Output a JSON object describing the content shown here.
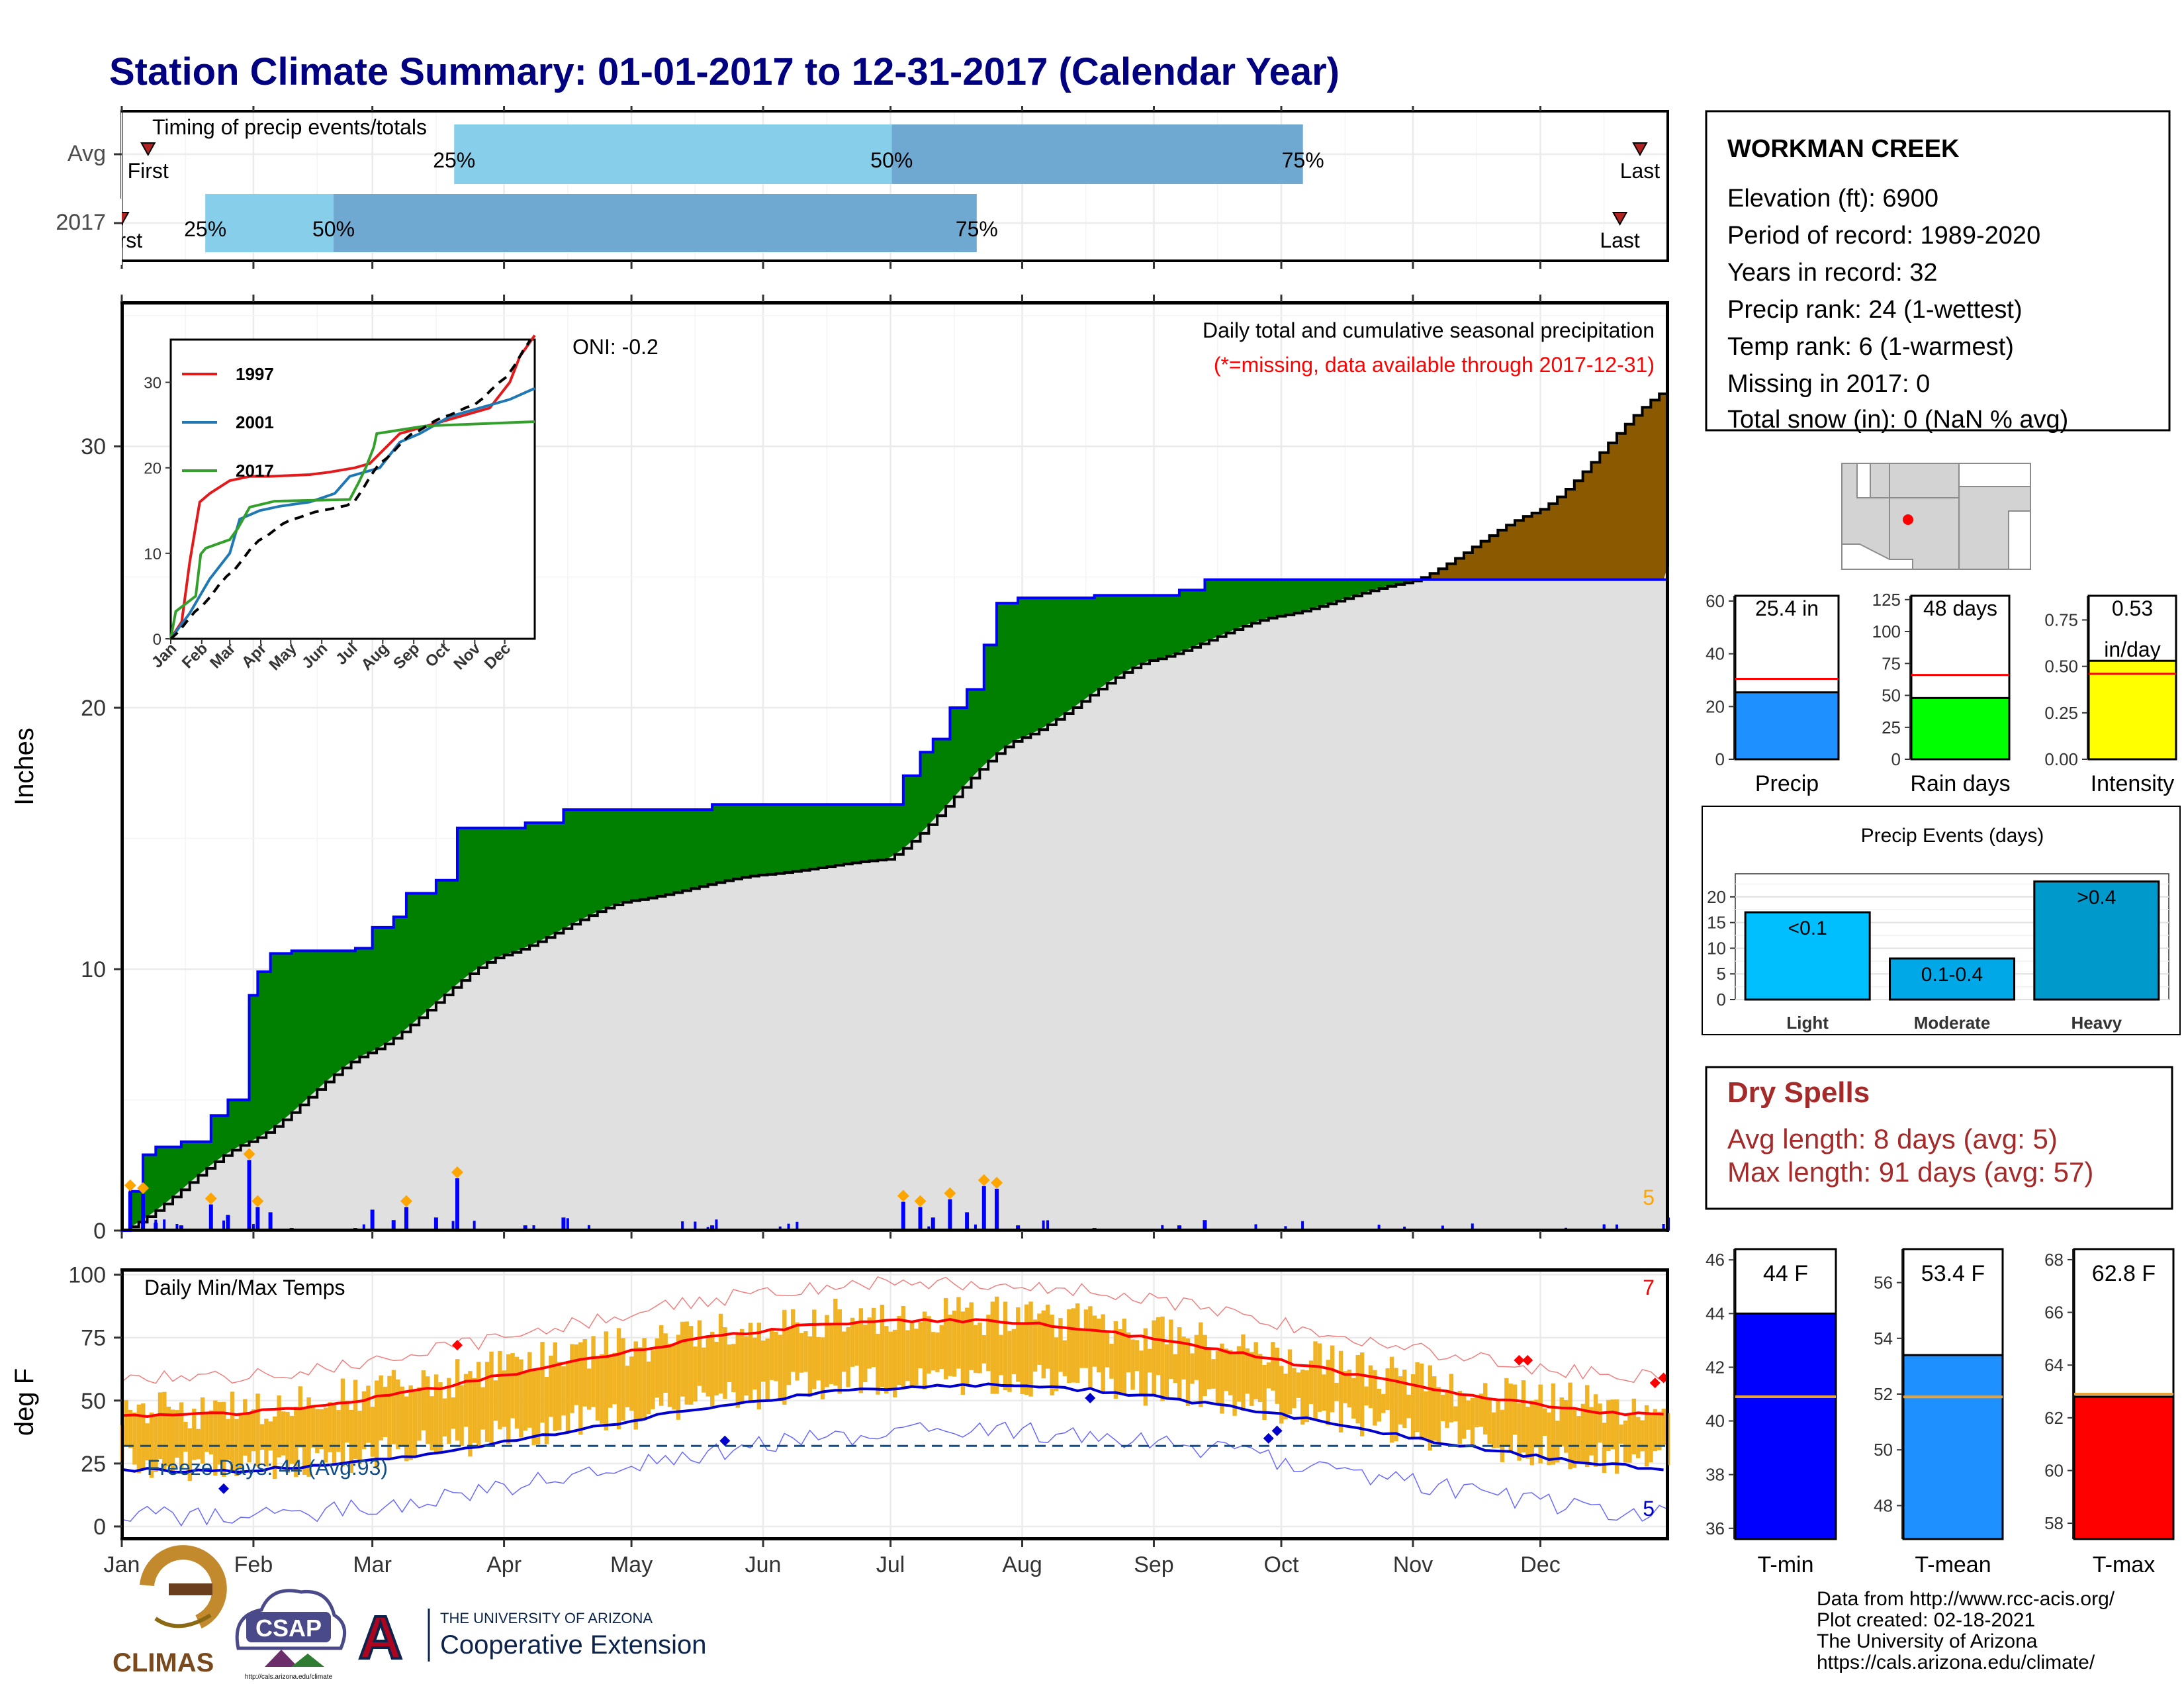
{
  "page": {
    "title": "Station Climate Summary: 01-01-2017 to 12-31-2017 (Calendar Year)"
  },
  "timing": {
    "title": "Timing of precip events/totals",
    "rows": [
      {
        "label": "Avg",
        "first": "First",
        "q25": "25%",
        "q50": "50%",
        "q75": "75%",
        "last": "Last"
      },
      {
        "label": "2017",
        "first": "First",
        "q25": "25%",
        "q50": "50%",
        "q75": "75%",
        "last": "Last"
      }
    ],
    "avg_fractions": {
      "first": 0.017,
      "q25": 0.215,
      "q50": 0.498,
      "q75": 0.764,
      "last": 0.982
    },
    "y2017_fractions": {
      "first": 0.0,
      "q25": 0.054,
      "q50": 0.137,
      "q75": 0.553,
      "last": 0.969
    }
  },
  "station": {
    "name": "WORKMAN CREEK",
    "lines": [
      "Elevation (ft): 6900",
      "Period of record: 1989-2020",
      "Years in record: 32",
      "Precip rank: 24 (1-wettest)",
      "Temp rank: 6 (1-warmest)",
      "Missing in 2017: 0",
      "Total snow (in): 0 (NaN % avg)"
    ]
  },
  "months": [
    "Jan",
    "Feb",
    "Mar",
    "Apr",
    "May",
    "Jun",
    "Jul",
    "Aug",
    "Sep",
    "Oct",
    "Nov",
    "Dec"
  ],
  "precip": {
    "ylabel": "Inches",
    "ylim": [
      0,
      35.5
    ],
    "yticks": [
      0,
      10,
      20,
      30
    ],
    "annotation": "Daily total and cumulative seasonal precipitation",
    "missing_note": "(*=missing, data available through 2017-12-31)",
    "oni": "ONI: -0.2",
    "corner_count": "5",
    "colors": {
      "observed": "#0000ff",
      "normal_fill": "#e0e0e0",
      "surplus": "#008000",
      "deficit": "#8b5a00"
    }
  },
  "inset": {
    "legend": [
      "1997",
      "2001",
      "2017"
    ],
    "colors": [
      "#e31a1c",
      "#1f78b4",
      "#33a02c"
    ],
    "yticks": [
      0,
      10,
      20,
      30
    ],
    "months": [
      "Jan",
      "Feb",
      "Mar",
      "Apr",
      "May",
      "Jun",
      "Jul",
      "Aug",
      "Sep",
      "Oct",
      "Nov",
      "Dec"
    ]
  },
  "temps": {
    "ylabel": "deg F",
    "title": "Daily Min/Max Temps",
    "freeze": "Freeze Days: 44 (Avg:93)",
    "yticks": [
      0,
      25,
      50,
      75,
      100
    ],
    "ylim": [
      -5,
      102
    ],
    "freeze_line": 32,
    "corner_top": "7",
    "corner_bottom": "5"
  },
  "bars_precip": [
    {
      "label": "Precip",
      "value": 25.4,
      "value_text": "25.4 in",
      "avg": 30.5,
      "ylim": [
        0,
        62
      ],
      "yticks": [
        "0",
        "20",
        "40",
        "60"
      ],
      "ytick_vals": [
        0,
        20,
        40,
        60
      ],
      "color": "#1e90ff"
    },
    {
      "label": "Rain days",
      "value": 48,
      "value_text": "48 days",
      "avg": 66,
      "ylim": [
        0,
        128
      ],
      "yticks": [
        "0",
        "25",
        "50",
        "75",
        "100",
        "125"
      ],
      "ytick_vals": [
        0,
        25,
        50,
        75,
        100,
        125
      ],
      "color": "#00ff00"
    },
    {
      "label": "Intensity",
      "value": 0.53,
      "value_text": "0.53",
      "value_text2": "in/day",
      "avg": 0.46,
      "ylim": [
        0,
        0.88
      ],
      "yticks": [
        "0.00",
        "0.25",
        "0.50",
        "0.75"
      ],
      "ytick_vals": [
        0,
        0.25,
        0.5,
        0.75
      ],
      "color": "#ffff00"
    }
  ],
  "events": {
    "title": "Precip Events (days)",
    "categories": [
      "Light",
      "Moderate",
      "Heavy"
    ],
    "bin_labels": [
      "<0.1",
      "0.1-0.4",
      ">0.4"
    ],
    "values": [
      17,
      8,
      23
    ],
    "colors": [
      "#00bfff",
      "#00a8e8",
      "#0099cc"
    ],
    "yticks": [
      0,
      5,
      10,
      15,
      20
    ],
    "ylim": [
      0,
      24.5
    ]
  },
  "dry": {
    "title": "Dry Spells",
    "avg": "Avg length: 8 days (avg: 5)",
    "max": "Max length: 91 days (avg: 57)"
  },
  "temp_bars": [
    {
      "label": "T-min",
      "value": 44.0,
      "value_text": "44 F",
      "avg": 40.9,
      "ylim": [
        35.6,
        46.4
      ],
      "yticks": [
        36,
        38,
        40,
        42,
        44,
        46
      ],
      "color": "#0000ff"
    },
    {
      "label": "T-mean",
      "value": 53.4,
      "value_text": "53.4 F",
      "avg": 51.9,
      "ylim": [
        46.8,
        57.2
      ],
      "yticks": [
        48,
        50,
        52,
        54,
        56
      ],
      "color": "#1e90ff"
    },
    {
      "label": "T-max",
      "value": 62.8,
      "value_text": "62.8 F",
      "avg": 62.9,
      "ylim": [
        57.4,
        68.4
      ],
      "yticks": [
        58,
        60,
        62,
        64,
        66,
        68
      ],
      "color": "#ff0000"
    }
  ],
  "credits": {
    "lines": [
      "Data from http://www.rcc-acis.org/",
      "Plot created: 02-18-2021",
      "The University of Arizona",
      "https://cals.arizona.edu/climate/"
    ]
  },
  "logos": {
    "climas": "CLIMAS",
    "csap": "CSAP",
    "csap_url": "http://cals.arizona.edu/climate",
    "ua_top": "THE UNIVERSITY OF ARIZONA",
    "ua_bottom": "Cooperative Extension",
    "ua_letter": "A"
  }
}
